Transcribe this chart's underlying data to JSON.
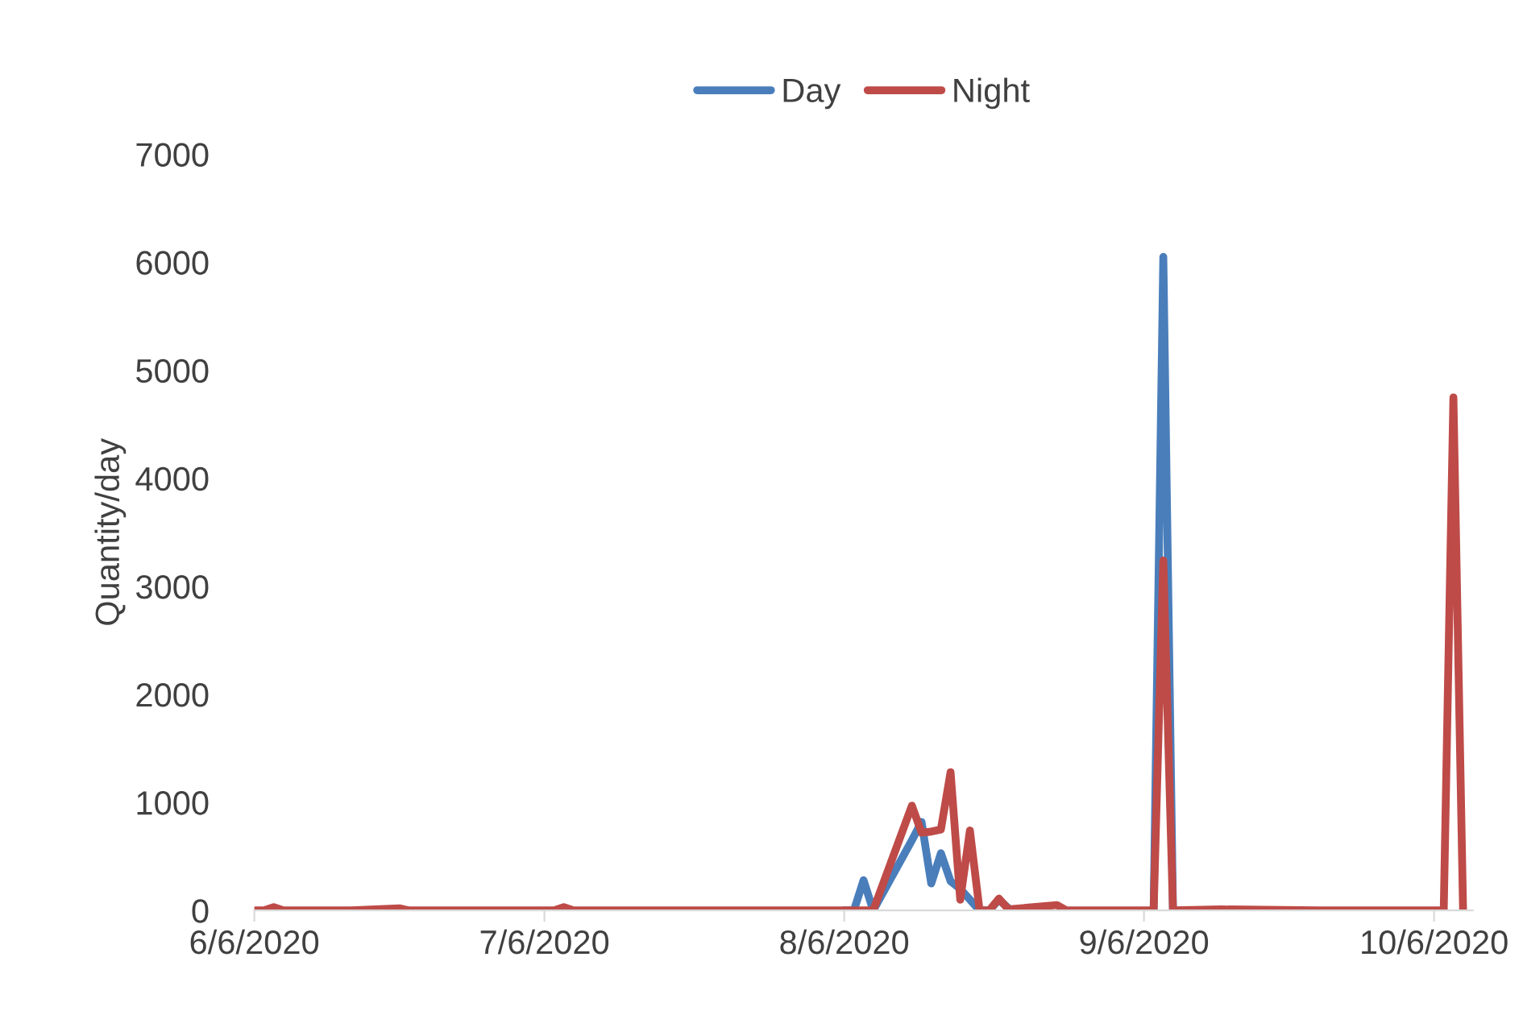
{
  "chart_data": {
    "type": "line",
    "ylabel": "Quantity/day",
    "legend": "top",
    "grid": false,
    "x": [
      "2020-06-06",
      "2020-06-07",
      "2020-06-08",
      "2020-06-09",
      "2020-06-16",
      "2020-06-21",
      "2020-06-22",
      "2020-07-01",
      "2020-07-07",
      "2020-07-08",
      "2020-07-09",
      "2020-07-21",
      "2020-07-31",
      "2020-08-06",
      "2020-08-07",
      "2020-08-08",
      "2020-08-09",
      "2020-08-13",
      "2020-08-14",
      "2020-08-15",
      "2020-08-16",
      "2020-08-17",
      "2020-08-18",
      "2020-08-19",
      "2020-08-20",
      "2020-08-21",
      "2020-08-22",
      "2020-08-23",
      "2020-08-28",
      "2020-08-29",
      "2020-09-06",
      "2020-09-07",
      "2020-09-08",
      "2020-09-09",
      "2020-09-14",
      "2020-09-24",
      "2020-10-04",
      "2020-10-07",
      "2020-10-08",
      "2020-10-09"
    ],
    "series": [
      {
        "name": "Day",
        "color": "#4a7ebb",
        "values": [
          null,
          null,
          null,
          null,
          null,
          null,
          null,
          null,
          null,
          null,
          null,
          null,
          null,
          0,
          0,
          280,
          0,
          650,
          820,
          250,
          530,
          270,
          200,
          100,
          0,
          0,
          100,
          20,
          null,
          null,
          null,
          0,
          6050,
          0,
          null,
          null,
          null,
          null,
          null,
          null
        ]
      },
      {
        "name": "Night",
        "color": "#be4b48",
        "values": [
          0,
          0,
          30,
          0,
          0,
          20,
          0,
          0,
          0,
          30,
          0,
          0,
          0,
          0,
          0,
          0,
          0,
          970,
          720,
          730,
          750,
          1280,
          100,
          740,
          0,
          0,
          110,
          10,
          50,
          0,
          0,
          0,
          3240,
          0,
          10,
          0,
          0,
          0,
          4750,
          0
        ]
      }
    ],
    "xlim": [
      "2020-06-06",
      "2020-10-10"
    ],
    "xticks": [
      {
        "value": "2020-06-06",
        "label": "6/6/2020"
      },
      {
        "value": "2020-07-06",
        "label": "7/6/2020"
      },
      {
        "value": "2020-08-06",
        "label": "8/6/2020"
      },
      {
        "value": "2020-09-06",
        "label": "9/6/2020"
      },
      {
        "value": "2020-10-06",
        "label": "10/6/2020"
      }
    ],
    "ylim": [
      0,
      7000
    ],
    "yticks": [
      0,
      1000,
      2000,
      3000,
      4000,
      5000,
      6000,
      7000
    ],
    "marker": "none",
    "line_style": "solid"
  }
}
